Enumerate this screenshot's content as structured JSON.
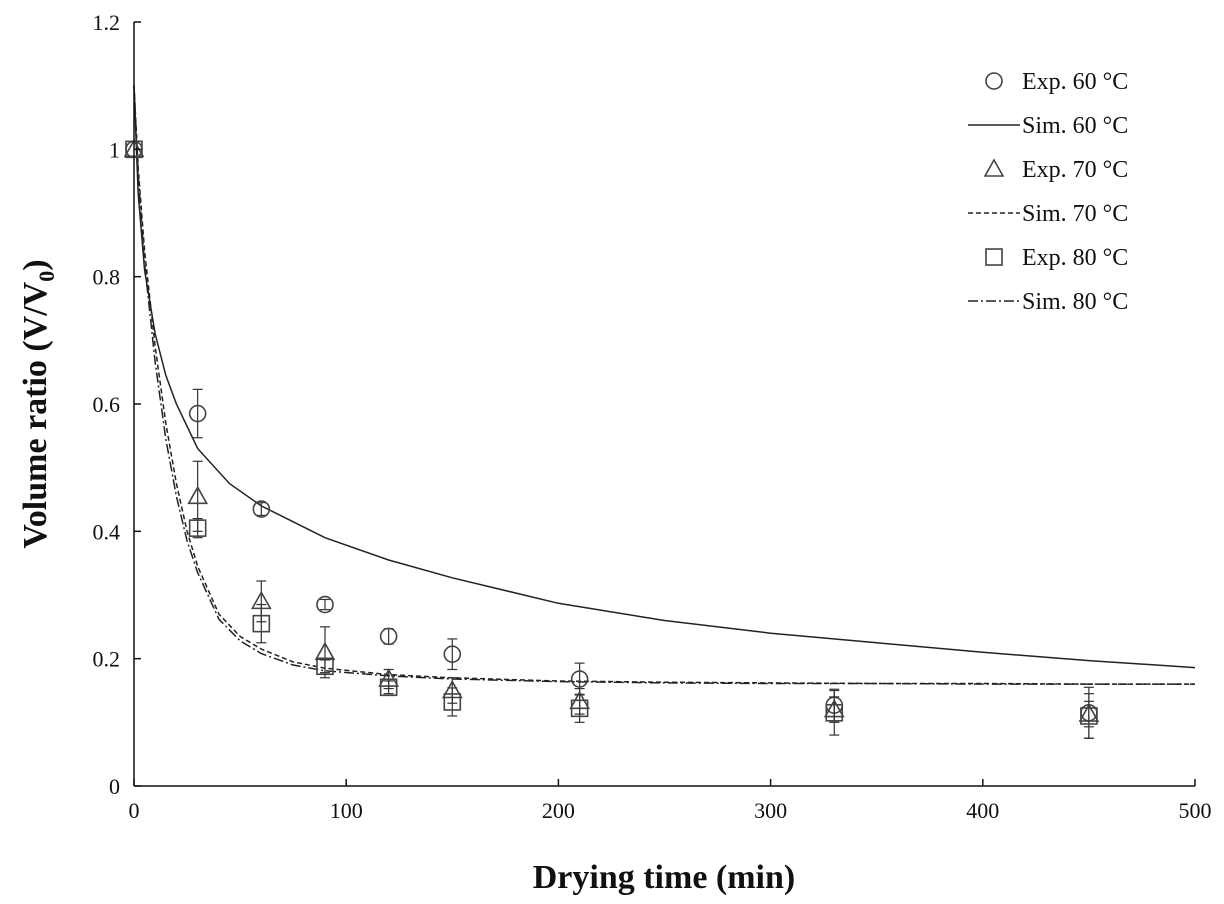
{
  "chart_data": {
    "type": "scatter",
    "xlabel": "Drying time (min)",
    "ylabel": "Volume ratio (V/V",
    "ylabel_subscript": "0",
    "ylabel_suffix": ")",
    "xlim": [
      0,
      500
    ],
    "ylim": [
      0,
      1.2
    ],
    "xticks": [
      0,
      100,
      200,
      300,
      400,
      500
    ],
    "yticks": [
      0,
      0.2,
      0.4,
      0.6,
      0.8,
      1,
      1.2
    ],
    "grid": false,
    "legend_position": "top-right",
    "series": [
      {
        "name": "Exp. 60 °C",
        "kind": "points",
        "marker": "circle",
        "x": [
          0,
          30,
          60,
          90,
          120,
          150,
          210,
          330,
          450
        ],
        "y": [
          1.0,
          0.585,
          0.435,
          0.285,
          0.235,
          0.207,
          0.168,
          0.127,
          0.115
        ],
        "err": [
          0,
          0.038,
          0.01,
          0.008,
          0.012,
          0.024,
          0.025,
          0.025,
          0.04
        ]
      },
      {
        "name": "Sim. 60 °C",
        "kind": "line",
        "style": "solid",
        "x": [
          0,
          2,
          5,
          10,
          15,
          20,
          30,
          45,
          60,
          90,
          120,
          150,
          200,
          250,
          300,
          350,
          400,
          450,
          500
        ],
        "y": [
          1.1,
          0.93,
          0.81,
          0.71,
          0.645,
          0.6,
          0.53,
          0.475,
          0.44,
          0.39,
          0.355,
          0.327,
          0.287,
          0.26,
          0.24,
          0.225,
          0.21,
          0.197,
          0.186
        ]
      },
      {
        "name": "Exp. 70 °C",
        "kind": "points",
        "marker": "triangle",
        "x": [
          0,
          30,
          60,
          90,
          120,
          150,
          210,
          330,
          450
        ],
        "y": [
          1.0,
          0.455,
          0.29,
          0.21,
          0.168,
          0.15,
          0.133,
          0.12,
          0.113
        ],
        "err": [
          0,
          0.055,
          0.032,
          0.04,
          0.015,
          0.02,
          0.02,
          0.02,
          0.02
        ]
      },
      {
        "name": "Sim. 70 °C",
        "kind": "line",
        "style": "dashed",
        "x": [
          0,
          2,
          5,
          10,
          15,
          20,
          25,
          30,
          40,
          50,
          60,
          75,
          90,
          120,
          150,
          200,
          250,
          300,
          350,
          400,
          450,
          500
        ],
        "y": [
          1.1,
          0.97,
          0.84,
          0.69,
          0.57,
          0.475,
          0.4,
          0.345,
          0.27,
          0.235,
          0.215,
          0.195,
          0.185,
          0.175,
          0.17,
          0.165,
          0.163,
          0.162,
          0.161,
          0.161,
          0.16,
          0.16
        ]
      },
      {
        "name": "Exp. 80 °C",
        "kind": "points",
        "marker": "square",
        "x": [
          0,
          30,
          60,
          90,
          120,
          150,
          210,
          330,
          450
        ],
        "y": [
          1.0,
          0.405,
          0.255,
          0.188,
          0.155,
          0.132,
          0.122,
          0.115,
          0.11
        ],
        "err": [
          0,
          0.015,
          0.03,
          0.01,
          0.01,
          0.022,
          0.022,
          0.035,
          0.035
        ]
      },
      {
        "name": "Sim. 80 °C",
        "kind": "line",
        "style": "dashdot",
        "x": [
          0,
          2,
          5,
          10,
          15,
          20,
          25,
          30,
          40,
          50,
          60,
          75,
          90,
          120,
          150,
          200,
          250,
          300,
          350,
          400,
          450,
          500
        ],
        "y": [
          1.1,
          0.96,
          0.82,
          0.665,
          0.545,
          0.455,
          0.385,
          0.335,
          0.262,
          0.228,
          0.208,
          0.19,
          0.181,
          0.173,
          0.168,
          0.164,
          0.162,
          0.161,
          0.161,
          0.16,
          0.16,
          0.16
        ]
      }
    ]
  }
}
